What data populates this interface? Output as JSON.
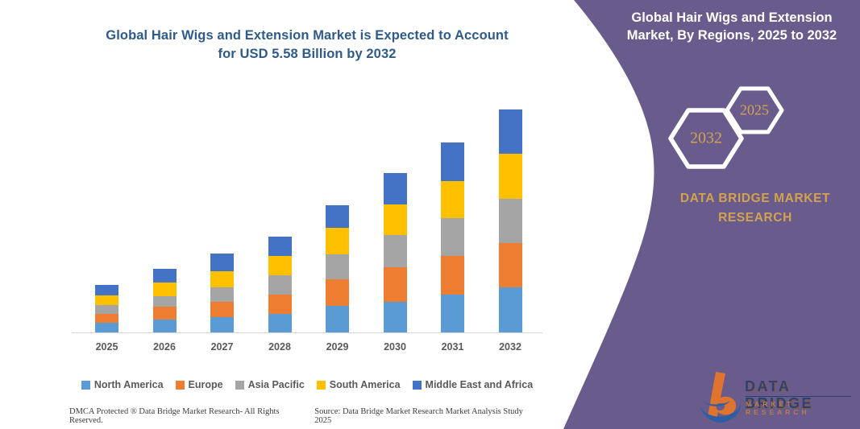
{
  "page": {
    "background": "#ffffff"
  },
  "left_section": {
    "title_line1": "Global Hair Wigs and Extension Market is Expected to Account",
    "title_line2": "for USD 5.58 Billion by 2032",
    "title_color": "#2E5B8A",
    "footer_left": "DMCA Protected ® Data Bridge Market Research-  All Rights Reserved.",
    "footer_right": "Source: Data Bridge Market Research  Market Analysis Study 2025"
  },
  "chart_data": {
    "type": "bar",
    "stacked": true,
    "title": "Global Hair Wigs and Extension Market is Expected to Account for USD 5.58 Billion by 2032",
    "unit": "USD Billion",
    "categories": [
      "2025",
      "2026",
      "2027",
      "2028",
      "2029",
      "2030",
      "2031",
      "2032"
    ],
    "series": [
      {
        "name": "North America",
        "color": "#5B9BD5",
        "values": [
          0.24,
          0.32,
          0.39,
          0.47,
          0.66,
          0.77,
          0.94,
          1.12
        ]
      },
      {
        "name": "Europe",
        "color": "#ED7D31",
        "values": [
          0.22,
          0.32,
          0.38,
          0.48,
          0.67,
          0.86,
          0.98,
          1.12
        ]
      },
      {
        "name": "Asia Pacific",
        "color": "#A5A5A5",
        "values": [
          0.22,
          0.27,
          0.37,
          0.48,
          0.62,
          0.8,
          0.94,
          1.11
        ]
      },
      {
        "name": "South America",
        "color": "#FFC000",
        "values": [
          0.25,
          0.34,
          0.4,
          0.48,
          0.67,
          0.77,
          0.94,
          1.12
        ]
      },
      {
        "name": "Middle East and Africa",
        "color": "#4472C4",
        "values": [
          0.26,
          0.34,
          0.44,
          0.49,
          0.57,
          0.8,
          0.97,
          1.11
        ]
      }
    ],
    "totals": [
      1.19,
      1.59,
      1.98,
      2.4,
      3.19,
      4.0,
      4.77,
      5.58
    ],
    "ylim": [
      0,
      5.8
    ],
    "grid": false,
    "y_axis_hidden": true,
    "legend_position": "bottom",
    "tick_color": "#595959",
    "axis_line_color": "#d6d6d6"
  },
  "panel": {
    "background": "#695C8D",
    "title_line1": "Global Hair Wigs and Extension",
    "title_line2": "Market, By Regions, 2025 to 2032",
    "title_color": "#ffffff",
    "hexagons": [
      {
        "label": "2032"
      },
      {
        "label": "2025"
      }
    ],
    "hexagon_stroke": "#ffffff",
    "hexagon_label_color": "#D2A24E",
    "brand_line1": "DATA BRIDGE MARKET",
    "brand_line2": "RESEARCH",
    "brand_color": "#D2A24E",
    "logo": {
      "text_top": "DATA BRIDGE",
      "text_bottom": "MARKET RESEARCH",
      "orange": "#E87726",
      "blue": "#2B5EA7",
      "navy": "#2a3f6e"
    }
  }
}
